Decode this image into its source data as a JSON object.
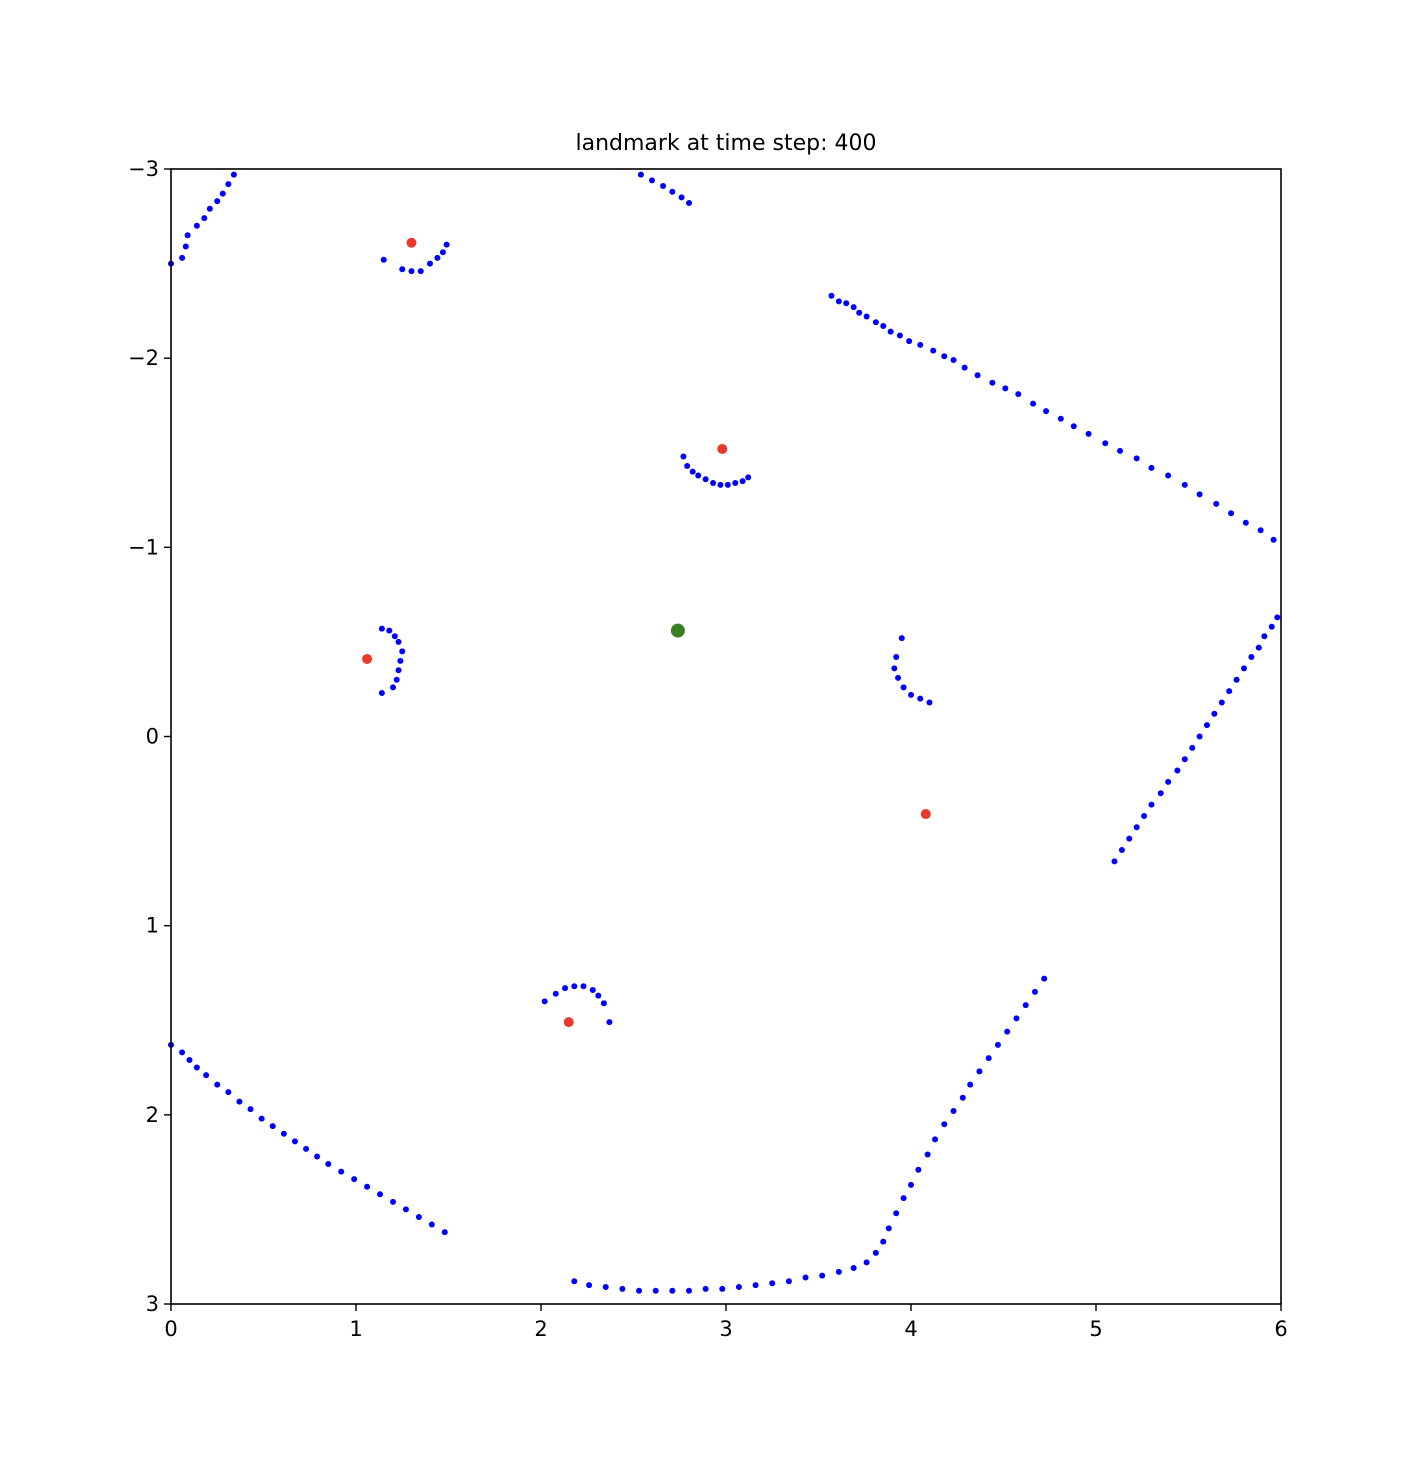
{
  "chart_data": {
    "type": "scatter",
    "title": "landmark at time step: 400",
    "xlabel": "",
    "ylabel": "",
    "xlim": [
      0,
      6
    ],
    "ylim": [
      -3,
      3
    ],
    "y_inverted": true,
    "grid": false,
    "legend": "none",
    "x_ticks": [
      0,
      1,
      2,
      3,
      4,
      5,
      6
    ],
    "x_tick_labels": [
      "0",
      "1",
      "2",
      "3",
      "4",
      "5",
      "6"
    ],
    "y_ticks": [
      -3,
      -2,
      -1,
      0,
      1,
      2,
      3
    ],
    "y_tick_labels": [
      "−3",
      "−2",
      "−1",
      "0",
      "1",
      "2",
      "3"
    ],
    "colors": {
      "scan": "#0000ff",
      "landmarks": "#e8392c",
      "robot": "#3a7d22"
    },
    "scan_points": [
      [
        0.0,
        -2.5
      ],
      [
        0.06,
        -2.53
      ],
      [
        0.08,
        -2.59
      ],
      [
        0.09,
        -2.65
      ],
      [
        0.14,
        -2.7
      ],
      [
        0.18,
        -2.74
      ],
      [
        0.21,
        -2.79
      ],
      [
        0.25,
        -2.83
      ],
      [
        0.28,
        -2.87
      ],
      [
        0.31,
        -2.92
      ],
      [
        0.34,
        -2.97
      ],
      [
        2.54,
        -2.97
      ],
      [
        2.6,
        -2.94
      ],
      [
        2.66,
        -2.91
      ],
      [
        2.71,
        -2.88
      ],
      [
        2.76,
        -2.85
      ],
      [
        2.8,
        -2.82
      ],
      [
        1.15,
        -2.52
      ],
      [
        1.25,
        -2.47
      ],
      [
        1.3,
        -2.46
      ],
      [
        1.35,
        -2.46
      ],
      [
        1.4,
        -2.5
      ],
      [
        1.44,
        -2.53
      ],
      [
        1.47,
        -2.56
      ],
      [
        1.49,
        -2.6
      ],
      [
        3.57,
        -2.33
      ],
      [
        3.61,
        -2.3
      ],
      [
        3.65,
        -2.29
      ],
      [
        3.69,
        -2.27
      ],
      [
        3.72,
        -2.24
      ],
      [
        3.76,
        -2.22
      ],
      [
        3.81,
        -2.19
      ],
      [
        3.85,
        -2.17
      ],
      [
        3.89,
        -2.14
      ],
      [
        3.94,
        -2.12
      ],
      [
        3.99,
        -2.09
      ],
      [
        4.05,
        -2.07
      ],
      [
        4.12,
        -2.04
      ],
      [
        4.18,
        -2.01
      ],
      [
        4.23,
        -1.99
      ],
      [
        4.29,
        -1.95
      ],
      [
        4.36,
        -1.91
      ],
      [
        4.44,
        -1.87
      ],
      [
        4.51,
        -1.84
      ],
      [
        4.58,
        -1.81
      ],
      [
        4.66,
        -1.76
      ],
      [
        4.73,
        -1.72
      ],
      [
        4.81,
        -1.68
      ],
      [
        4.88,
        -1.64
      ],
      [
        4.96,
        -1.6
      ],
      [
        5.05,
        -1.55
      ],
      [
        5.13,
        -1.51
      ],
      [
        5.22,
        -1.47
      ],
      [
        5.3,
        -1.42
      ],
      [
        5.39,
        -1.38
      ],
      [
        5.48,
        -1.33
      ],
      [
        5.56,
        -1.28
      ],
      [
        5.65,
        -1.23
      ],
      [
        5.73,
        -1.18
      ],
      [
        5.81,
        -1.13
      ],
      [
        5.89,
        -1.09
      ],
      [
        5.96,
        -1.04
      ],
      [
        5.98,
        -0.63
      ],
      [
        5.95,
        -0.58
      ],
      [
        5.91,
        -0.53
      ],
      [
        5.88,
        -0.47
      ],
      [
        5.84,
        -0.42
      ],
      [
        5.8,
        -0.36
      ],
      [
        5.76,
        -0.3
      ],
      [
        5.72,
        -0.24
      ],
      [
        5.68,
        -0.18
      ],
      [
        5.64,
        -0.12
      ],
      [
        5.6,
        -0.06
      ],
      [
        5.56,
        0.0
      ],
      [
        5.52,
        0.06
      ],
      [
        5.48,
        0.12
      ],
      [
        5.44,
        0.18
      ],
      [
        5.39,
        0.24
      ],
      [
        5.35,
        0.3
      ],
      [
        5.3,
        0.36
      ],
      [
        5.26,
        0.42
      ],
      [
        5.22,
        0.48
      ],
      [
        5.18,
        0.54
      ],
      [
        5.14,
        0.6
      ],
      [
        5.1,
        0.66
      ],
      [
        2.77,
        -1.48
      ],
      [
        2.79,
        -1.43
      ],
      [
        2.82,
        -1.4
      ],
      [
        2.85,
        -1.38
      ],
      [
        2.89,
        -1.36
      ],
      [
        2.93,
        -1.34
      ],
      [
        2.97,
        -1.33
      ],
      [
        3.01,
        -1.33
      ],
      [
        3.05,
        -1.34
      ],
      [
        3.09,
        -1.35
      ],
      [
        3.12,
        -1.37
      ],
      [
        1.14,
        -0.57
      ],
      [
        1.18,
        -0.56
      ],
      [
        1.21,
        -0.53
      ],
      [
        1.23,
        -0.5
      ],
      [
        1.25,
        -0.45
      ],
      [
        1.24,
        -0.4
      ],
      [
        1.23,
        -0.35
      ],
      [
        1.22,
        -0.3
      ],
      [
        1.2,
        -0.26
      ],
      [
        1.14,
        -0.23
      ],
      [
        4.1,
        -0.18
      ],
      [
        4.05,
        -0.2
      ],
      [
        4.0,
        -0.22
      ],
      [
        3.96,
        -0.26
      ],
      [
        3.93,
        -0.31
      ],
      [
        3.91,
        -0.36
      ],
      [
        3.92,
        -0.42
      ],
      [
        3.95,
        -0.52
      ],
      [
        2.02,
        1.4
      ],
      [
        2.08,
        1.36
      ],
      [
        2.13,
        1.33
      ],
      [
        2.18,
        1.32
      ],
      [
        2.23,
        1.32
      ],
      [
        2.28,
        1.34
      ],
      [
        2.31,
        1.37
      ],
      [
        2.34,
        1.41
      ],
      [
        2.37,
        1.51
      ],
      [
        0.0,
        1.63
      ],
      [
        0.06,
        1.67
      ],
      [
        0.1,
        1.71
      ],
      [
        0.14,
        1.75
      ],
      [
        0.19,
        1.79
      ],
      [
        0.25,
        1.84
      ],
      [
        0.31,
        1.88
      ],
      [
        0.37,
        1.93
      ],
      [
        0.43,
        1.97
      ],
      [
        0.49,
        2.02
      ],
      [
        0.55,
        2.06
      ],
      [
        0.61,
        2.1
      ],
      [
        0.67,
        2.14
      ],
      [
        0.73,
        2.18
      ],
      [
        0.79,
        2.22
      ],
      [
        0.85,
        2.26
      ],
      [
        0.92,
        2.3
      ],
      [
        0.99,
        2.34
      ],
      [
        1.06,
        2.38
      ],
      [
        1.13,
        2.42
      ],
      [
        1.2,
        2.46
      ],
      [
        1.27,
        2.5
      ],
      [
        1.34,
        2.54
      ],
      [
        1.41,
        2.58
      ],
      [
        1.48,
        2.62
      ],
      [
        2.18,
        2.88
      ],
      [
        2.26,
        2.9
      ],
      [
        2.35,
        2.91
      ],
      [
        2.44,
        2.92
      ],
      [
        2.53,
        2.93
      ],
      [
        2.62,
        2.93
      ],
      [
        2.71,
        2.93
      ],
      [
        2.8,
        2.93
      ],
      [
        2.89,
        2.92
      ],
      [
        2.98,
        2.92
      ],
      [
        3.07,
        2.91
      ],
      [
        3.16,
        2.9
      ],
      [
        3.25,
        2.89
      ],
      [
        3.34,
        2.88
      ],
      [
        3.43,
        2.86
      ],
      [
        3.52,
        2.85
      ],
      [
        3.61,
        2.83
      ],
      [
        3.69,
        2.81
      ],
      [
        3.76,
        2.78
      ],
      [
        3.81,
        2.73
      ],
      [
        3.85,
        2.67
      ],
      [
        3.88,
        2.6
      ],
      [
        3.92,
        2.52
      ],
      [
        3.96,
        2.44
      ],
      [
        4.0,
        2.37
      ],
      [
        4.04,
        2.29
      ],
      [
        4.09,
        2.21
      ],
      [
        4.13,
        2.13
      ],
      [
        4.18,
        2.05
      ],
      [
        4.23,
        1.98
      ],
      [
        4.28,
        1.91
      ],
      [
        4.32,
        1.84
      ],
      [
        4.37,
        1.77
      ],
      [
        4.42,
        1.7
      ],
      [
        4.47,
        1.63
      ],
      [
        4.52,
        1.56
      ],
      [
        4.57,
        1.49
      ],
      [
        4.62,
        1.42
      ],
      [
        4.67,
        1.35
      ],
      [
        4.72,
        1.28
      ]
    ],
    "landmarks": [
      [
        1.3,
        -2.61
      ],
      [
        2.98,
        -1.52
      ],
      [
        1.06,
        -0.41
      ],
      [
        4.08,
        0.41
      ],
      [
        2.15,
        1.51
      ]
    ],
    "robot": [
      2.74,
      -0.56
    ]
  }
}
